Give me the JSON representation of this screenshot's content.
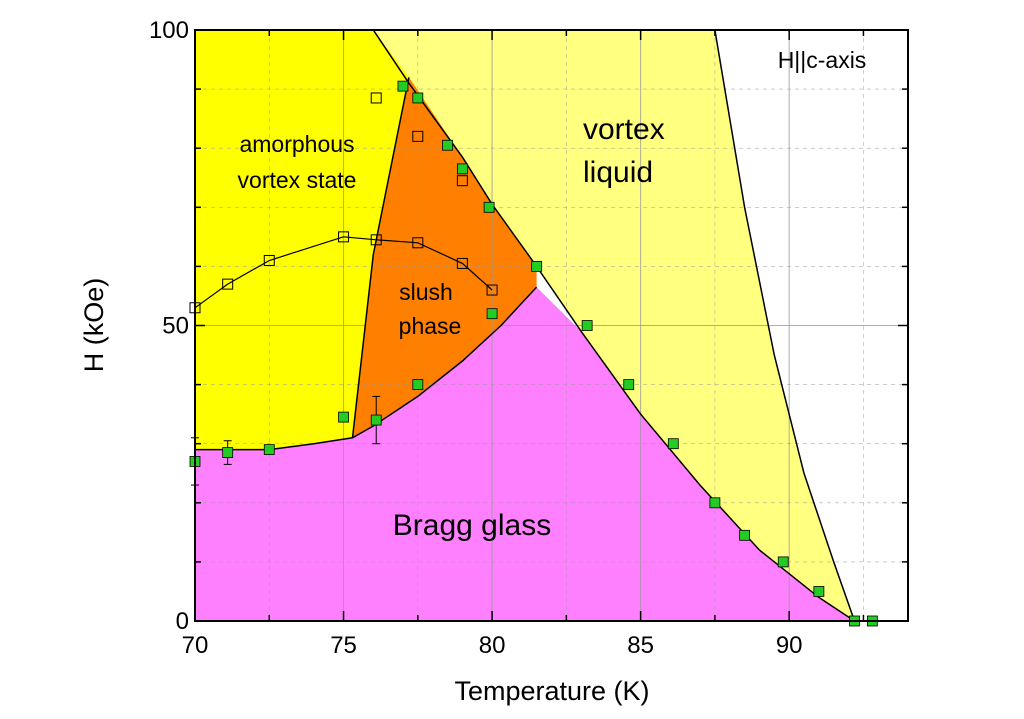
{
  "chart_data": {
    "type": "scatter",
    "title": "",
    "xlabel": "Temperature (K)",
    "ylabel": "H (kOe)",
    "xlim": [
      70,
      94
    ],
    "ylim": [
      0,
      100
    ],
    "x_ticks": [
      70,
      75,
      80,
      85,
      90
    ],
    "y_ticks": [
      0,
      50,
      100
    ],
    "grid": true,
    "annotation": "H||c-axis",
    "regions": [
      {
        "name": "amorphous vortex state",
        "label_lines": [
          "amorphous",
          "vortex state"
        ],
        "color": "#ffff00"
      },
      {
        "name": "vortex liquid",
        "label_lines": [
          "vortex",
          "liquid"
        ],
        "color": "#ffff80"
      },
      {
        "name": "slush phase",
        "label_lines": [
          "slush",
          "phase"
        ],
        "color": "#ff8000"
      },
      {
        "name": "Bragg glass",
        "label_lines": [
          "Bragg glass"
        ],
        "color": "#ff80ff"
      }
    ],
    "series": [
      {
        "marker": "filled-square",
        "color": "#22cc22",
        "points": [
          [
            70,
            27
          ],
          [
            71.1,
            28.5
          ],
          [
            72.5,
            29
          ],
          [
            75,
            34.5
          ],
          [
            76.1,
            34
          ],
          [
            77.5,
            40
          ],
          [
            80,
            52
          ],
          [
            81.5,
            60
          ],
          [
            83.2,
            50
          ],
          [
            84.6,
            40
          ],
          [
            86.1,
            30
          ],
          [
            87.5,
            20
          ],
          [
            88.5,
            14.5
          ],
          [
            89.8,
            10
          ],
          [
            91,
            5
          ],
          [
            92.2,
            0
          ],
          [
            92.8,
            0
          ],
          [
            77,
            90.5
          ],
          [
            77.5,
            88.5
          ],
          [
            78.5,
            80.5
          ],
          [
            79,
            76.5
          ],
          [
            79.9,
            70
          ]
        ],
        "error_bars": [
          {
            "x": 70,
            "y": 27,
            "err": 4
          },
          {
            "x": 71.1,
            "y": 28.5,
            "err": 2
          },
          {
            "x": 76.1,
            "y": 34,
            "err": 4
          }
        ]
      },
      {
        "marker": "open-square",
        "color": "#000000",
        "points": [
          [
            70,
            53
          ],
          [
            71.1,
            57
          ],
          [
            72.5,
            61
          ],
          [
            75,
            65
          ],
          [
            76.1,
            64.5
          ],
          [
            77.5,
            64
          ],
          [
            79,
            60.5
          ],
          [
            80,
            56
          ],
          [
            76.1,
            88.5
          ],
          [
            77.5,
            82
          ],
          [
            79,
            74.5
          ]
        ]
      }
    ]
  }
}
